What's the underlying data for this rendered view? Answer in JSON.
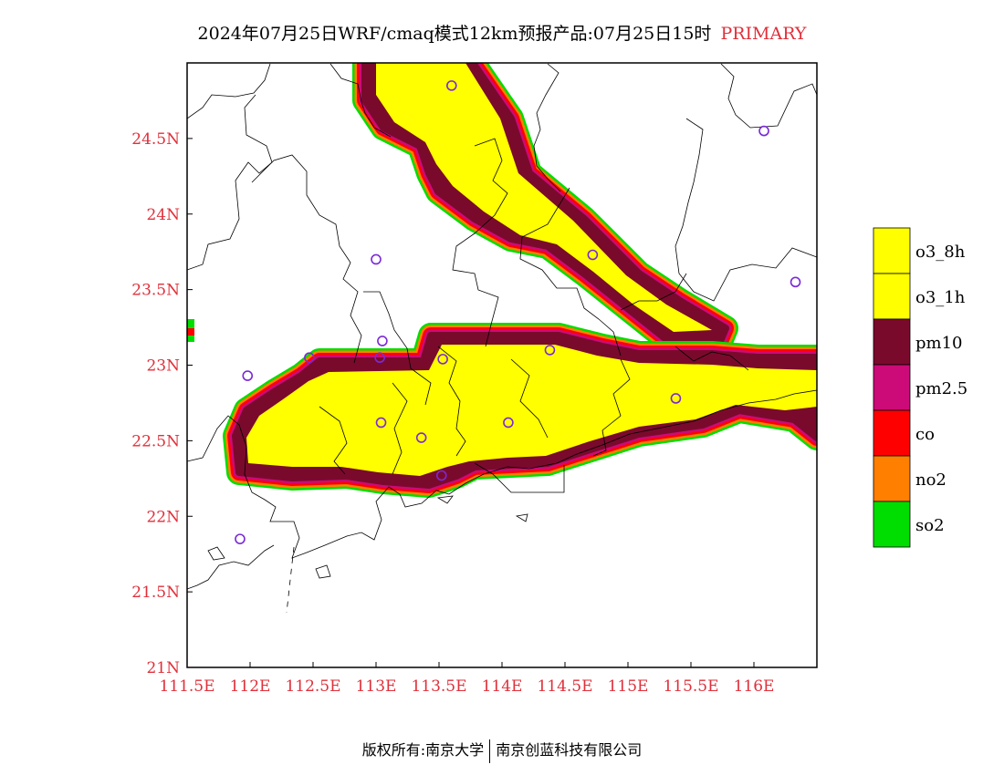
{
  "title": {
    "main": "2024年07月25日WRF/cmaq模式12km预报产品:07月25日15时",
    "tag": "PRIMARY"
  },
  "footer": {
    "left": "版权所有:南京大学",
    "right": "南京创蓝科技有限公司"
  },
  "colors": {
    "label": "#e0303a",
    "o3_8h": "#ffff00",
    "o3_1h": "#ffff00",
    "pm10": "#7a0a2c",
    "pm2_5": "#cc0a78",
    "co": "#ff0000",
    "no2": "#ff7f00",
    "so2": "#00dd00",
    "station": "#7a2ad6"
  },
  "map": {
    "lon_range": [
      111.5,
      116.5
    ],
    "lat_range": [
      21.0,
      25.0
    ],
    "x_ticks": [
      "111.5E",
      "112E",
      "112.5E",
      "113E",
      "113.5E",
      "114E",
      "114.5E",
      "115E",
      "115.5E",
      "116E"
    ],
    "y_ticks": [
      "21N",
      "21.5N",
      "22N",
      "22.5N",
      "23N",
      "23.5N",
      "24N",
      "24.5N"
    ],
    "stations": [
      [
        113.6,
        24.85
      ],
      [
        116.08,
        24.55
      ],
      [
        113.0,
        23.7
      ],
      [
        114.72,
        23.73
      ],
      [
        116.33,
        23.55
      ],
      [
        113.03,
        23.05
      ],
      [
        113.53,
        23.04
      ],
      [
        114.38,
        23.1
      ],
      [
        112.47,
        23.05
      ],
      [
        111.98,
        22.93
      ],
      [
        113.05,
        23.16
      ],
      [
        113.04,
        22.62
      ],
      [
        113.36,
        22.52
      ],
      [
        114.05,
        22.62
      ],
      [
        115.38,
        22.78
      ],
      [
        113.52,
        22.27
      ],
      [
        111.92,
        21.85
      ]
    ]
  },
  "legend": {
    "items": [
      {
        "key": "o3_8h",
        "label": "o3_8h"
      },
      {
        "key": "o3_1h",
        "label": "o3_1h"
      },
      {
        "key": "pm10",
        "label": "pm10"
      },
      {
        "key": "pm2_5",
        "label": "pm2.5"
      },
      {
        "key": "co",
        "label": "co"
      },
      {
        "key": "no2",
        "label": "no2"
      },
      {
        "key": "so2",
        "label": "so2"
      }
    ]
  }
}
